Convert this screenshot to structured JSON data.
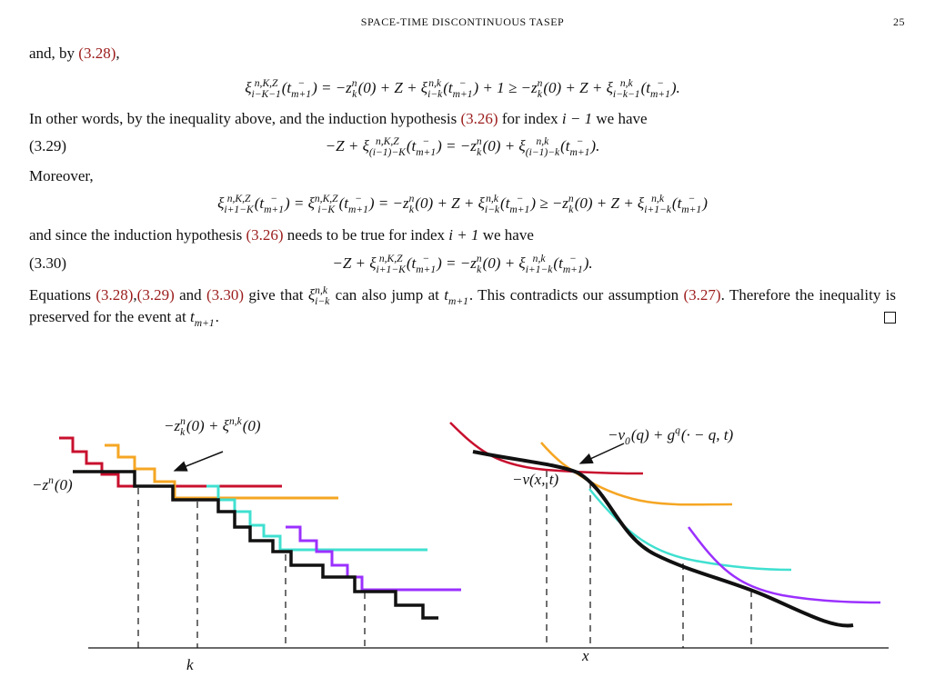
{
  "header": {
    "title": "SPACE-TIME DISCONTINUOUS TASEP",
    "page": "25"
  },
  "blocks": [
    {
      "runs": [
        "and, by ",
        {
          "ref": "(3.28)"
        },
        ","
      ]
    },
    {
      "math": [
        "ξ",
        {
          "sup": "n,K,Z",
          "sub": "i−K−1"
        },
        "(t",
        {
          "sup": "−",
          "sub": "m+1"
        },
        ") = −z",
        {
          "sup": "n",
          "sub": "k"
        },
        "(0) + Z + ξ",
        {
          "sup": "n,k",
          "sub": "i−k"
        },
        "(t",
        {
          "sup": "−",
          "sub": "m+1"
        },
        ") + 1 ≥ −z",
        {
          "sup": "n",
          "sub": "k"
        },
        "(0) + Z + ξ",
        {
          "sup": "n,k",
          "sub": "i−k−1"
        },
        "(t",
        {
          "sup": "−",
          "sub": "m+1"
        },
        ")."
      ]
    },
    {
      "runs": [
        "In other words, by the inequality above, and the induction hypothesis ",
        {
          "ref": "(3.26)"
        },
        " for index ",
        {
          "m": [
            "i − 1"
          ]
        },
        " we have"
      ]
    },
    {
      "label": "(3.29)",
      "math": [
        "−Z + ξ",
        {
          "sup": "n,K,Z",
          "sub": "(i−1)−K"
        },
        "(t",
        {
          "sup": "−",
          "sub": "m+1"
        },
        ") = −z",
        {
          "sup": "n",
          "sub": "k"
        },
        "(0) + ξ",
        {
          "sup": "n,k",
          "sub": "(i−1)−k"
        },
        "(t",
        {
          "sup": "−",
          "sub": "m+1"
        },
        ")."
      ]
    },
    {
      "runs": [
        "Moreover,"
      ]
    },
    {
      "math": [
        "ξ",
        {
          "sup": "n,K,Z",
          "sub": "i+1−K"
        },
        "(t",
        {
          "sup": "−",
          "sub": "m+1"
        },
        ") = ξ",
        {
          "sup": "n,K,Z",
          "sub": "i−K"
        },
        "(t",
        {
          "sup": "−",
          "sub": "m+1"
        },
        ") = −z",
        {
          "sup": "n",
          "sub": "k"
        },
        "(0) + Z + ξ",
        {
          "sup": "n,k",
          "sub": "i−k"
        },
        "(t",
        {
          "sup": "−",
          "sub": "m+1"
        },
        ") ≥ −z",
        {
          "sup": "n",
          "sub": "k"
        },
        "(0) + Z + ξ",
        {
          "sup": "n,k",
          "sub": "i+1−k"
        },
        "(t",
        {
          "sup": "−",
          "sub": "m+1"
        },
        ")"
      ]
    },
    {
      "runs": [
        "and since the induction hypothesis ",
        {
          "ref": "(3.26)"
        },
        " needs to be true for index ",
        {
          "m": [
            "i + 1"
          ]
        },
        " we have"
      ]
    },
    {
      "label": "(3.30)",
      "math": [
        "−Z + ξ",
        {
          "sup": "n,K,Z",
          "sub": "i+1−K"
        },
        "(t",
        {
          "sup": "−",
          "sub": "m+1"
        },
        ") = −z",
        {
          "sup": "n",
          "sub": "k"
        },
        "(0) + ξ",
        {
          "sup": "n,k",
          "sub": "i+1−k"
        },
        "(t",
        {
          "sup": "−",
          "sub": "m+1"
        },
        ")."
      ]
    },
    {
      "runs": [
        "Equations ",
        {
          "ref": "(3.28)"
        },
        ",",
        {
          "ref": "(3.29)"
        },
        " and ",
        {
          "ref": "(3.30)"
        },
        " give that ",
        {
          "m": [
            "ξ",
            {
              "sup": "n,k",
              "sub": "i−k"
            }
          ]
        },
        " can also jump at ",
        {
          "m": [
            "t",
            {
              "sub": "m+1"
            }
          ]
        },
        ". This contradicts our assumption ",
        {
          "ref": "(3.27)"
        },
        ". Therefore the inequality is preserved for the event at ",
        {
          "m": [
            "t",
            {
              "sub": "m+1"
            }
          ]
        },
        "."
      ]
    }
  ],
  "figure": {
    "labels": [
      {
        "math": [
          "−z",
          {
            "sup": "n",
            "sub": "k"
          },
          "(0)  +  ξ",
          {
            "sup": "n,k"
          },
          "(0)"
        ]
      },
      {
        "math": [
          "−z",
          {
            "sup": "n"
          },
          "(0)"
        ]
      },
      {
        "math": [
          "k"
        ]
      },
      {
        "math": [
          "−v",
          {
            "sub": "0"
          },
          "(q)  +  g",
          {
            "sup": "q"
          },
          "(·  − q, t)"
        ]
      },
      {
        "math": [
          "−v(x, t)"
        ]
      },
      {
        "math": [
          "x"
        ]
      }
    ]
  }
}
